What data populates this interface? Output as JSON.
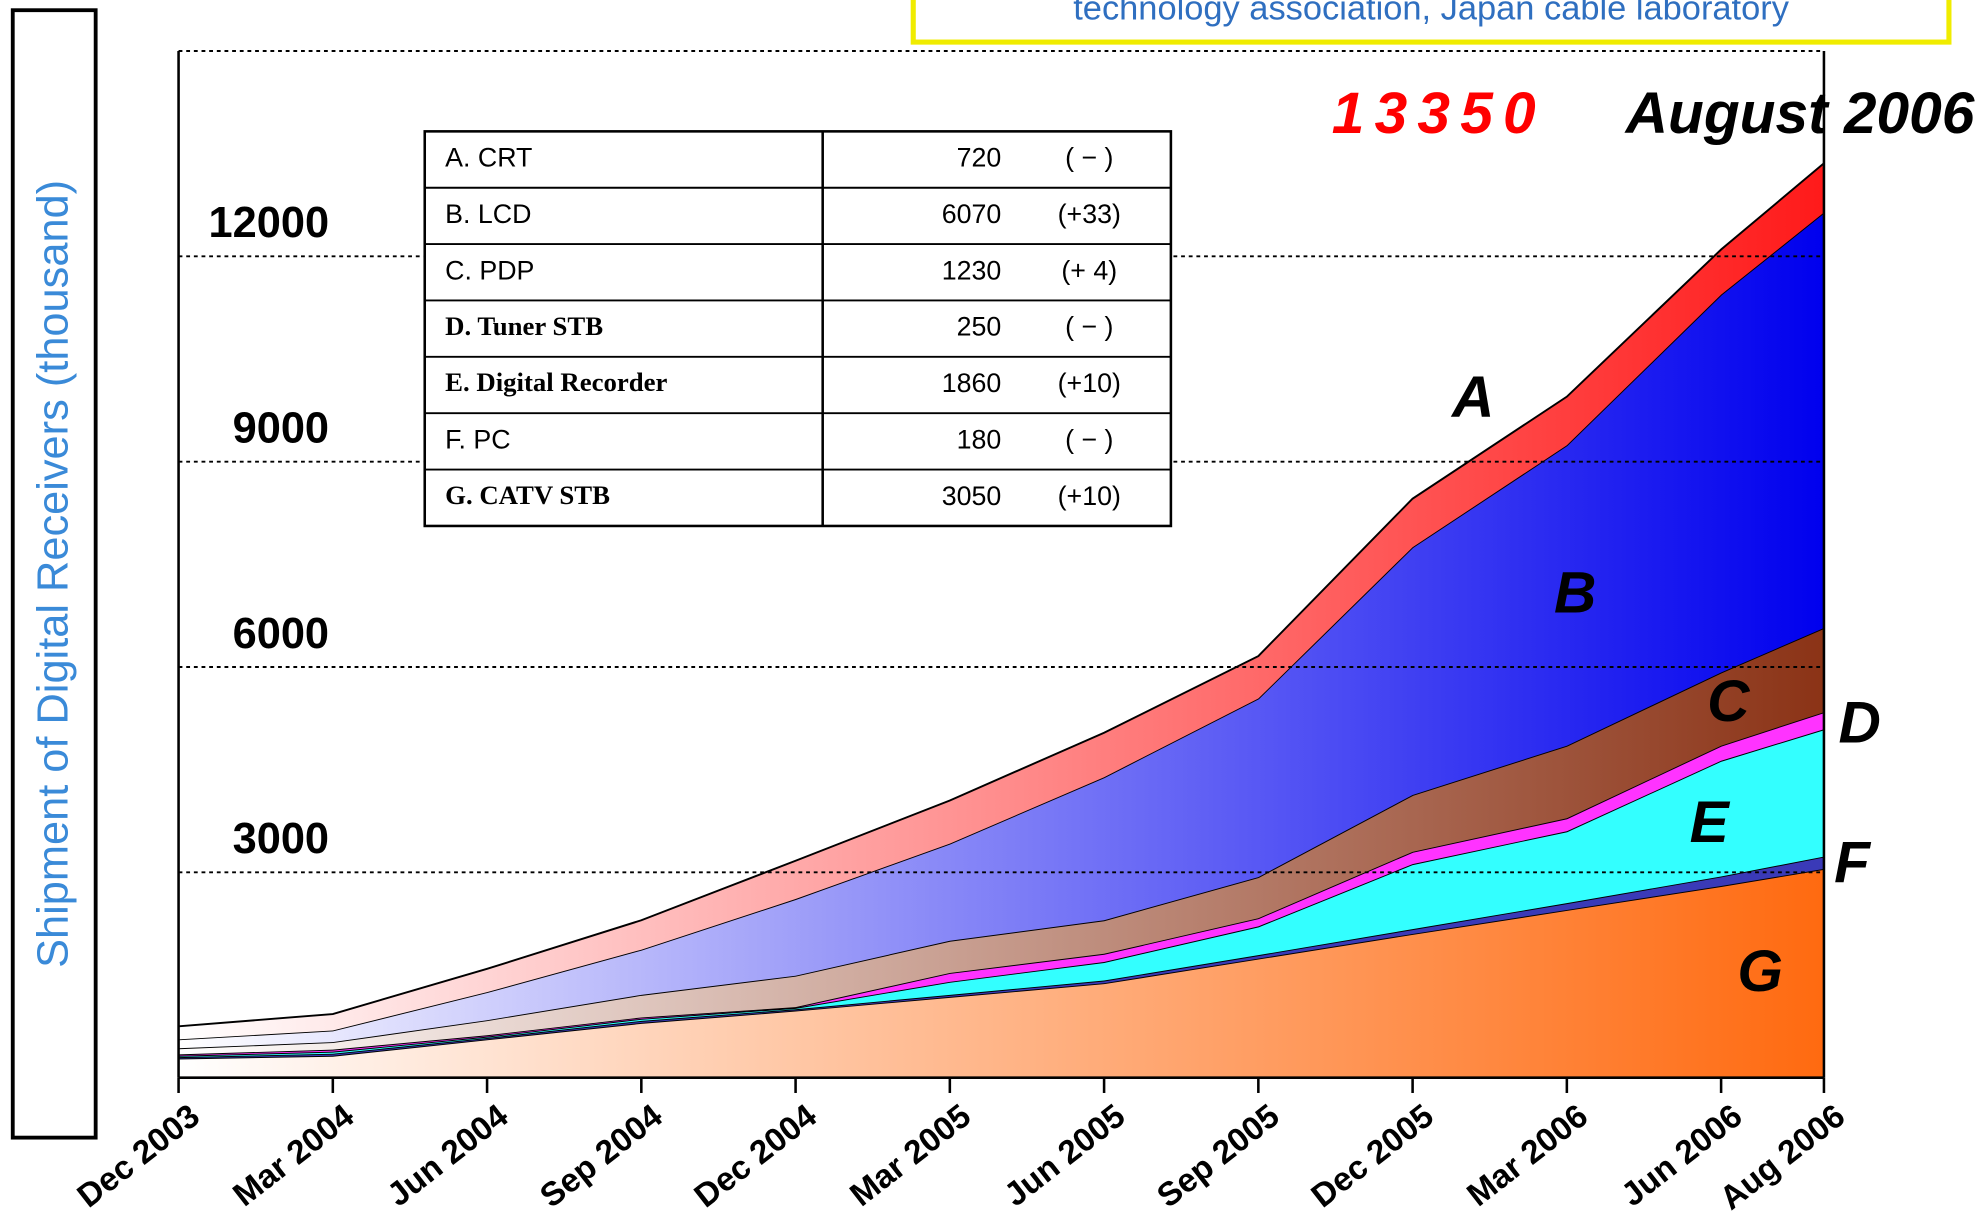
{
  "chart_data": {
    "type": "stacked-area",
    "y_label": "Shipment of Digital Receivers (thousand)",
    "annotation": "technology association, Japan cable laboratory",
    "total": 13350,
    "total_date": "August 2006",
    "categories": [
      "Dec 2003",
      "Mar 2004",
      "Jun 2004",
      "Sep 2004",
      "Dec 2004",
      "Mar 2005",
      "Jun 2005",
      "Sep 2005",
      "Dec 2005",
      "Mar 2006",
      "Jun 2006",
      "Aug 2006"
    ],
    "ylim": [
      0,
      15000
    ],
    "yticks": [
      3000,
      6000,
      9000,
      12000
    ],
    "grid": true,
    "series": [
      {
        "name": "G",
        "color": "#ff6a10",
        "values": [
          280,
          320,
          560,
          800,
          980,
          1180,
          1380,
          1740,
          2100,
          2450,
          2800,
          3050
        ]
      },
      {
        "name": "F",
        "color": "#3a3ab8",
        "values": [
          20,
          30,
          20,
          30,
          20,
          30,
          40,
          50,
          70,
          100,
          140,
          180
        ]
      },
      {
        "name": "E",
        "color": "#33ffff",
        "values": [
          20,
          30,
          20,
          30,
          20,
          190,
          270,
          420,
          950,
          1050,
          1690,
          1860
        ]
      },
      {
        "name": "D",
        "color": "#ff33ff",
        "values": [
          20,
          30,
          20,
          20,
          10,
          130,
          120,
          120,
          180,
          190,
          220,
          250
        ]
      },
      {
        "name": "C",
        "color": "#8b3316",
        "values": [
          90,
          110,
          220,
          330,
          460,
          470,
          490,
          600,
          830,
          1060,
          1070,
          1230
        ]
      },
      {
        "name": "B",
        "color": "#0000ee",
        "values": [
          130,
          170,
          410,
          660,
          1120,
          1420,
          2090,
          2610,
          3620,
          4390,
          5520,
          6070
        ]
      },
      {
        "name": "A",
        "color": "#ff1a1a",
        "values": [
          190,
          240,
          340,
          430,
          560,
          630,
          650,
          620,
          710,
          710,
          660,
          720
        ]
      }
    ],
    "table": [
      {
        "label": "A. CRT",
        "series": 6,
        "change": "( − )"
      },
      {
        "label": "B. LCD",
        "series": 5,
        "change": "(+33)"
      },
      {
        "label": "C. PDP",
        "series": 4,
        "change": "(+ 4)"
      },
      {
        "label": "D. Tuner STB",
        "series": 3,
        "change": "( − )"
      },
      {
        "label": "E. Digital Recorder",
        "series": 2,
        "change": "(+10)"
      },
      {
        "label": "F.  PC",
        "series": 1,
        "change": "( − )"
      },
      {
        "label": "G. CATV STB",
        "series": 0,
        "change": "(+10)"
      }
    ]
  }
}
